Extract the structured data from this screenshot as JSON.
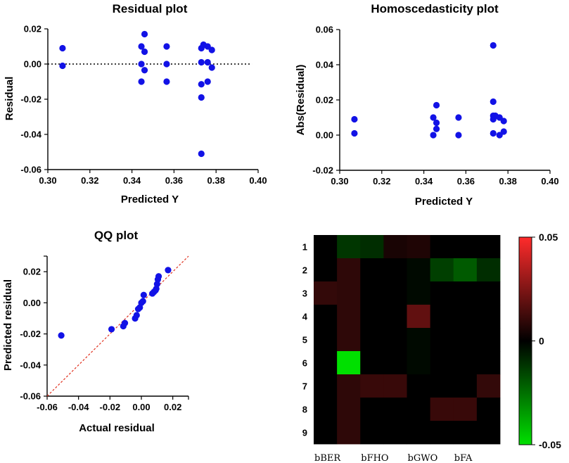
{
  "chart_data": [
    {
      "id": "residual",
      "type": "scatter",
      "title": "Residual plot",
      "xlabel": "Predicted Y",
      "ylabel": "Residual",
      "xlim": [
        0.3,
        0.4
      ],
      "ylim": [
        -0.06,
        0.02
      ],
      "xticks": [
        "0.30",
        "0.32",
        "0.34",
        "0.36",
        "0.38",
        "0.40"
      ],
      "yticks": [
        "0.02",
        "0.00",
        "-0.02",
        "-0.04",
        "-0.06"
      ],
      "reference_line": 0,
      "points": [
        [
          0.307,
          0.009
        ],
        [
          0.307,
          -0.001
        ],
        [
          0.3445,
          0.01
        ],
        [
          0.3445,
          0.0
        ],
        [
          0.3445,
          -0.01
        ],
        [
          0.346,
          0.017
        ],
        [
          0.346,
          0.007
        ],
        [
          0.346,
          -0.0035
        ],
        [
          0.3565,
          0.01
        ],
        [
          0.3565,
          0.0
        ],
        [
          0.3565,
          -0.01
        ],
        [
          0.373,
          0.009
        ],
        [
          0.373,
          0.001
        ],
        [
          0.373,
          -0.0115
        ],
        [
          0.373,
          -0.019
        ],
        [
          0.373,
          -0.051
        ],
        [
          0.374,
          0.011
        ],
        [
          0.376,
          0.01
        ],
        [
          0.376,
          0.001
        ],
        [
          0.376,
          -0.01
        ],
        [
          0.378,
          0.008
        ],
        [
          0.378,
          -0.002
        ]
      ]
    },
    {
      "id": "homosced",
      "type": "scatter",
      "title": "Homoscedasticity plot",
      "xlabel": "Predicted Y",
      "ylabel": "Abs(Residual)",
      "xlim": [
        0.3,
        0.4
      ],
      "ylim": [
        -0.02,
        0.06
      ],
      "xticks": [
        "0.30",
        "0.32",
        "0.34",
        "0.36",
        "0.38",
        "0.40"
      ],
      "yticks": [
        "0.06",
        "0.04",
        "0.02",
        "0.00",
        "-0.02"
      ],
      "points": [
        [
          0.307,
          0.009
        ],
        [
          0.307,
          0.001
        ],
        [
          0.3445,
          0.01
        ],
        [
          0.3445,
          0.0
        ],
        [
          0.346,
          0.017
        ],
        [
          0.346,
          0.007
        ],
        [
          0.346,
          0.0035
        ],
        [
          0.3565,
          0.01
        ],
        [
          0.3565,
          0.0
        ],
        [
          0.373,
          0.051
        ],
        [
          0.373,
          0.019
        ],
        [
          0.373,
          0.011
        ],
        [
          0.373,
          0.009
        ],
        [
          0.373,
          0.001
        ],
        [
          0.374,
          0.011
        ],
        [
          0.376,
          0.01
        ],
        [
          0.376,
          0.0
        ],
        [
          0.378,
          0.008
        ],
        [
          0.378,
          0.002
        ]
      ]
    },
    {
      "id": "qq",
      "type": "scatter",
      "title": "QQ plot",
      "xlabel": "Actual residual",
      "ylabel": "Predicted residual",
      "xlim": [
        -0.06,
        0.03
      ],
      "ylim": [
        -0.06,
        0.03
      ],
      "xticks": [
        "-0.06",
        "-0.04",
        "-0.02",
        "0.00",
        "0.02"
      ],
      "yticks": [
        "0.02",
        "0.00",
        "-0.02",
        "-0.04",
        "-0.06"
      ],
      "reference_line": "y = x",
      "points": [
        [
          -0.051,
          -0.021
        ],
        [
          -0.019,
          -0.017
        ],
        [
          -0.0115,
          -0.015
        ],
        [
          -0.0105,
          -0.013
        ],
        [
          -0.004,
          -0.01
        ],
        [
          -0.003,
          -0.008
        ],
        [
          -0.002,
          -0.004
        ],
        [
          -0.001,
          -0.003
        ],
        [
          0.0,
          0.0
        ],
        [
          0.001,
          0.001
        ],
        [
          0.0015,
          0.005
        ],
        [
          0.007,
          0.006
        ],
        [
          0.008,
          0.007
        ],
        [
          0.009,
          0.008
        ],
        [
          0.0095,
          0.009
        ],
        [
          0.01,
          0.012
        ],
        [
          0.0105,
          0.015
        ],
        [
          0.011,
          0.017
        ],
        [
          0.017,
          0.021
        ]
      ]
    },
    {
      "id": "heatmap",
      "type": "heatmap",
      "rows": [
        "1",
        "2",
        "3",
        "4",
        "5",
        "6",
        "7",
        "8",
        "9"
      ],
      "col_labels": [
        "bBER",
        "bFHO",
        "bGWO",
        "bFA"
      ],
      "n_cols": 8,
      "colorbar": {
        "min": -0.05,
        "max": 0.05,
        "ticks": [
          "0.05",
          "0",
          "-0.05"
        ]
      },
      "colors": {
        "positive": "#ff2b2b",
        "zero": "#000000",
        "negative": "#00e000"
      },
      "values": [
        [
          0.0,
          -0.012,
          -0.01,
          0.005,
          0.006,
          0.0,
          0.0,
          0.0
        ],
        [
          0.0,
          0.009,
          0.0,
          0.0,
          -0.002,
          -0.014,
          -0.02,
          -0.01
        ],
        [
          0.01,
          0.009,
          0.0,
          0.0,
          -0.002,
          0.0,
          0.0,
          0.0
        ],
        [
          0.0,
          0.009,
          0.0,
          0.0,
          0.019,
          0.0,
          0.0,
          0.0
        ],
        [
          0.0,
          0.009,
          0.0,
          0.0,
          -0.002,
          0.0,
          0.0,
          0.0
        ],
        [
          0.0,
          -0.051,
          0.0,
          0.0,
          -0.002,
          0.0,
          0.0,
          0.0
        ],
        [
          0.0,
          0.009,
          0.011,
          0.011,
          0.0,
          0.0,
          0.0,
          0.01
        ],
        [
          0.0,
          0.009,
          0.0,
          0.0,
          0.0,
          0.011,
          0.011,
          0.0
        ],
        [
          0.0,
          0.009,
          0.0,
          0.0,
          0.0,
          0.0,
          0.0,
          0.0
        ]
      ]
    }
  ],
  "colors": {
    "point": "#1212e6",
    "ref_line": "#e0301e",
    "axis": "#000000"
  }
}
